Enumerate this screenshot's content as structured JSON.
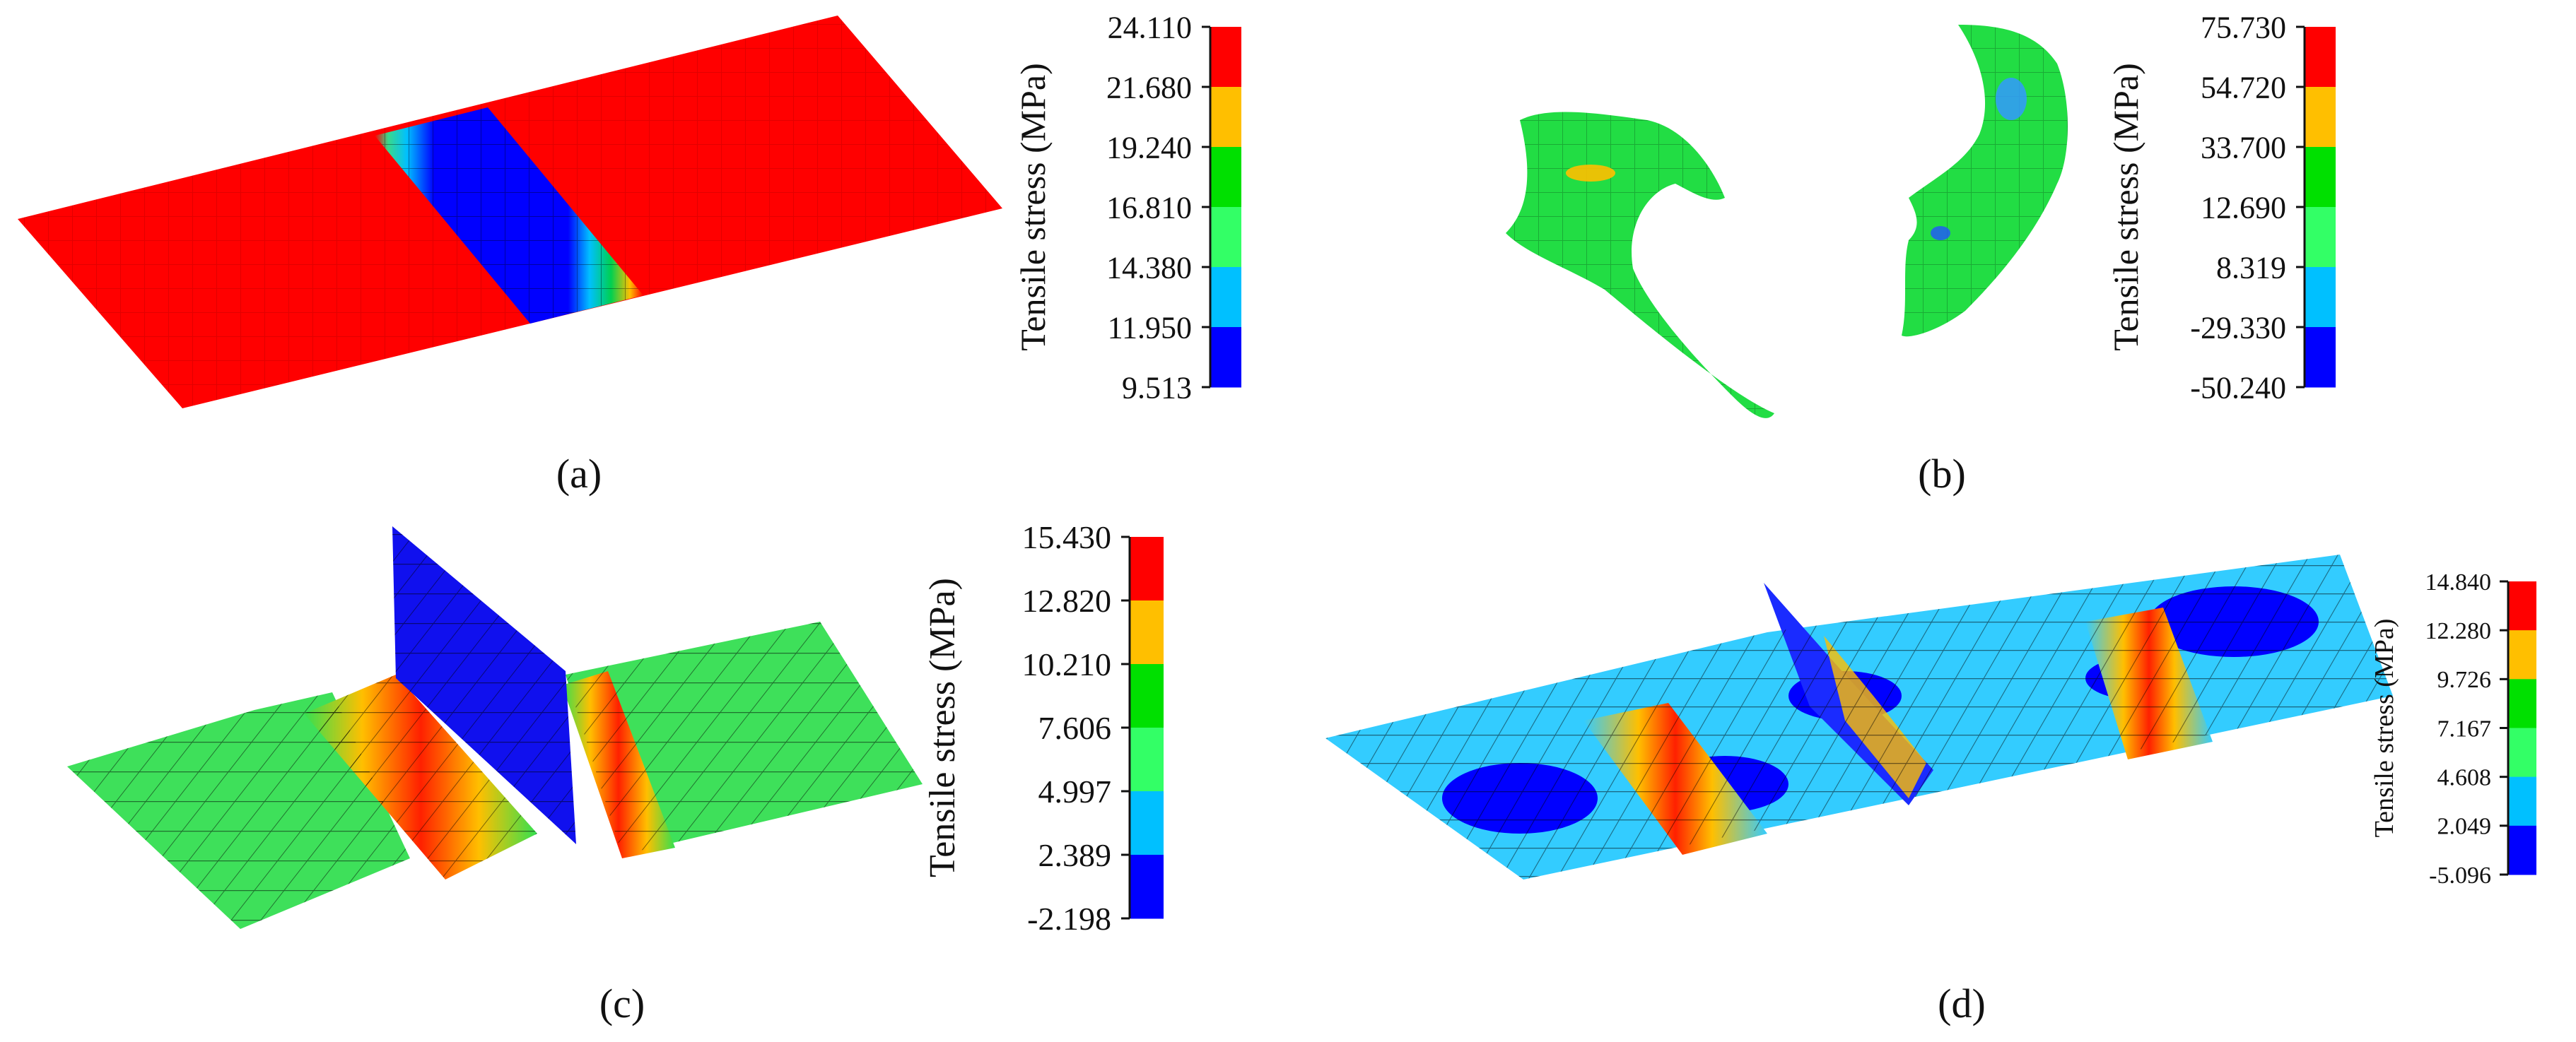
{
  "figure": {
    "panels": [
      {
        "id": "a",
        "label": "(a)",
        "colorbar": {
          "title": "Tensile stress (MPa)",
          "ticks": [
            "24.110",
            "21.680",
            "19.240",
            "16.810",
            "14.380",
            "11.950",
            "9.513"
          ],
          "colors": [
            "#ff0000",
            "#ffbf00",
            "#00e000",
            "#33ff66",
            "#00c0ff",
            "#0000ff"
          ]
        }
      },
      {
        "id": "b",
        "label": "(b)",
        "colorbar": {
          "title": "Tensile stress (MPa)",
          "ticks": [
            "75.730",
            "54.720",
            "33.700",
            "12.690",
            "8.319",
            "-29.330",
            "-50.240"
          ],
          "colors": [
            "#ff0000",
            "#ffbf00",
            "#00e000",
            "#33ff66",
            "#00c0ff",
            "#0000ff"
          ]
        }
      },
      {
        "id": "c",
        "label": "(c)",
        "colorbar": {
          "title": "Tensile stress (MPa)",
          "ticks": [
            "15.430",
            "12.820",
            "10.210",
            "7.606",
            "4.997",
            "2.389",
            "-2.198"
          ],
          "colors": [
            "#ff0000",
            "#ffbf00",
            "#00e000",
            "#33ff66",
            "#00c0ff",
            "#0000ff"
          ]
        }
      },
      {
        "id": "d",
        "label": "(d)",
        "colorbar": {
          "title": "Tensile stress (MPa)",
          "ticks": [
            "14.840",
            "12.280",
            "9.726",
            "7.167",
            "4.608",
            "2.049",
            "-5.096"
          ],
          "colors": [
            "#ff0000",
            "#ffbf00",
            "#00e000",
            "#33ff66",
            "#00c0ff",
            "#0000ff"
          ]
        }
      }
    ]
  }
}
